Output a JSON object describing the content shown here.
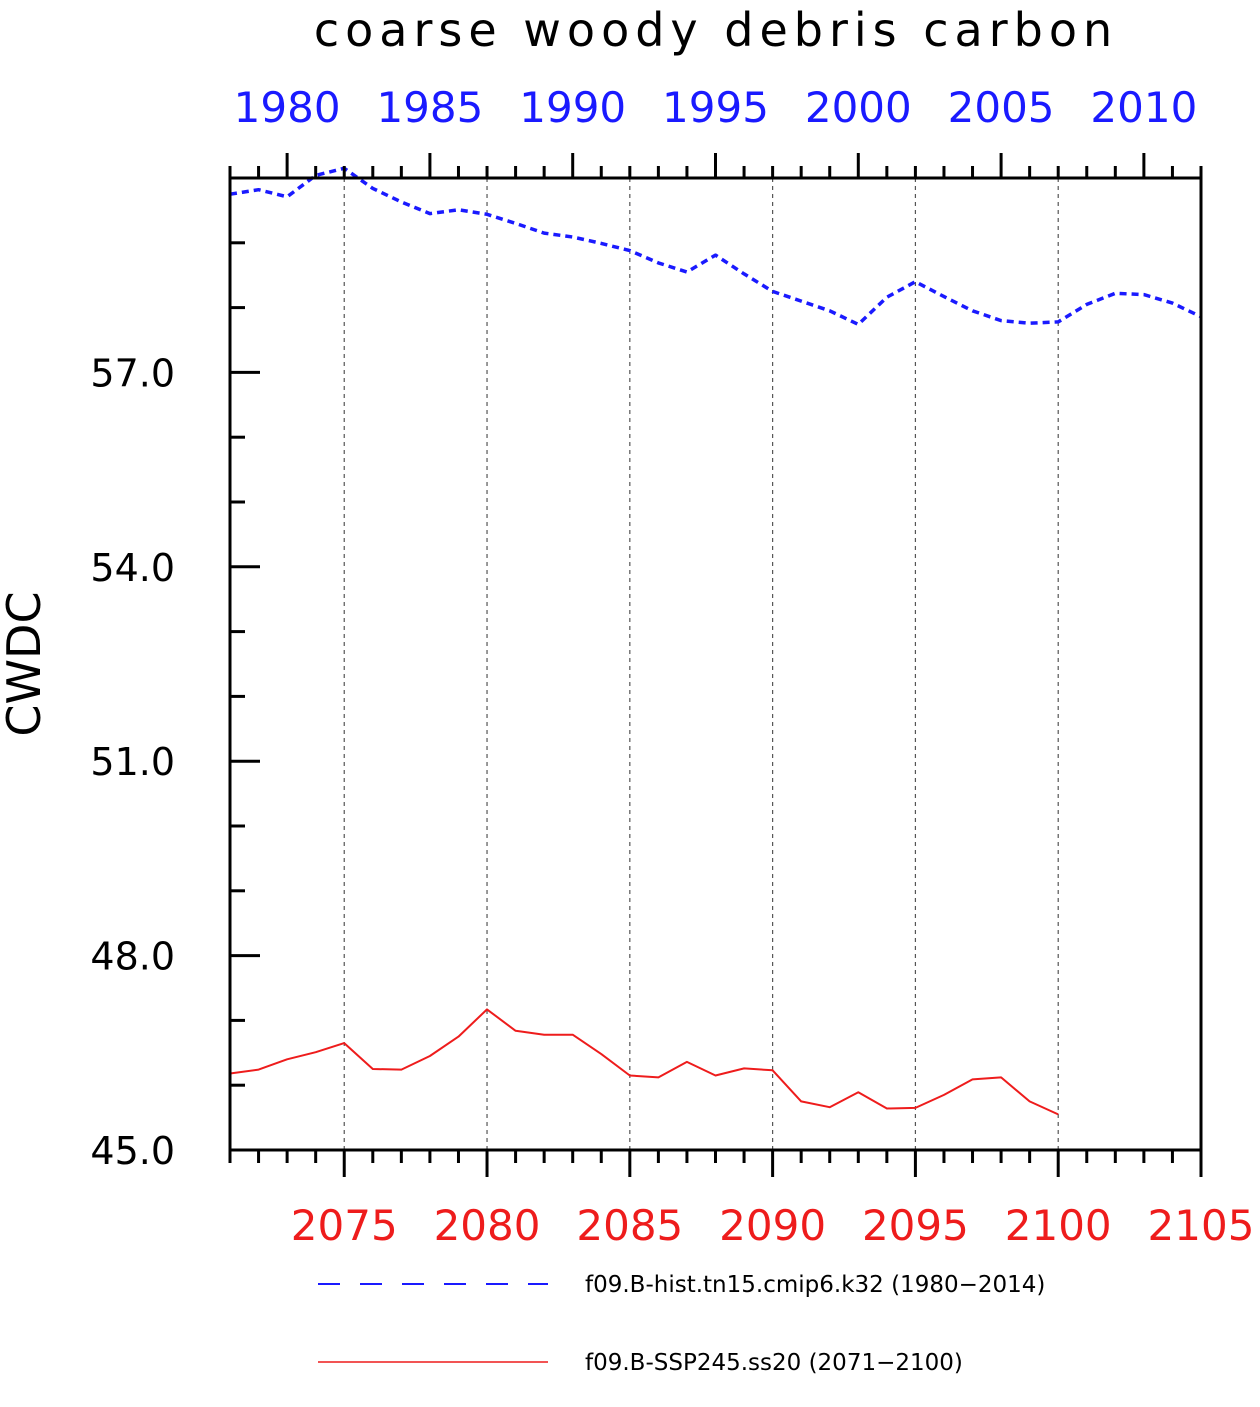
{
  "chart_data": {
    "type": "line",
    "title": "coarse woody debris carbon",
    "ylabel": "CWDC",
    "xlabel": "",
    "ylim": [
      45.0,
      60.0
    ],
    "y_ticks": [
      "45.0",
      "48.0",
      "51.0",
      "54.0",
      "57.0"
    ],
    "grid": "vertical dashed",
    "legend_position": "bottom",
    "top_axis": {
      "color": "#1a1aff",
      "range": [
        1978,
        2012
      ],
      "tick_labels": [
        "1980",
        "1985",
        "1990",
        "1995",
        "2000",
        "2005",
        "2010"
      ]
    },
    "bottom_axis": {
      "color": "#ee1c1c",
      "range": [
        2071,
        2105
      ],
      "tick_labels": [
        "2075",
        "2080",
        "2085",
        "2090",
        "2095",
        "2100",
        "2105"
      ]
    },
    "series": [
      {
        "name": "f09.B-hist.tn15.cmip6.k32 (1980−2014)",
        "color": "#1a1aff",
        "dash": "dashed",
        "axis": "top",
        "x": [
          1978,
          1979,
          1980,
          1981,
          1982,
          1983,
          1984,
          1985,
          1986,
          1987,
          1988,
          1989,
          1990,
          1991,
          1992,
          1993,
          1994,
          1995,
          1996,
          1997,
          1998,
          1999,
          2000,
          2001,
          2002,
          2003,
          2004,
          2005,
          2006,
          2007,
          2008,
          2009,
          2010,
          2011,
          2012
        ],
        "values": [
          59.75,
          59.82,
          59.71,
          60.04,
          60.15,
          59.84,
          59.63,
          59.45,
          59.51,
          59.44,
          59.3,
          59.15,
          59.09,
          58.99,
          58.88,
          58.69,
          58.55,
          58.81,
          58.52,
          58.25,
          58.1,
          57.95,
          57.74,
          58.16,
          58.4,
          58.17,
          57.95,
          57.8,
          57.76,
          57.78,
          58.05,
          58.22,
          58.2,
          58.07,
          57.86
        ]
      },
      {
        "name": "f09.B-SSP245.ss20 (2071−2100)",
        "color": "#ee1c1c",
        "dash": "solid",
        "axis": "bottom",
        "x": [
          2071,
          2072,
          2073,
          2074,
          2075,
          2076,
          2077,
          2078,
          2079,
          2080,
          2081,
          2082,
          2083,
          2084,
          2085,
          2086,
          2087,
          2088,
          2089,
          2090,
          2091,
          2092,
          2093,
          2094,
          2095,
          2096,
          2097,
          2098,
          2099,
          2100
        ],
        "values": [
          46.18,
          46.24,
          46.4,
          46.51,
          46.65,
          46.25,
          46.24,
          46.45,
          46.75,
          47.17,
          46.84,
          46.78,
          46.78,
          46.48,
          46.15,
          46.12,
          46.36,
          46.15,
          46.26,
          46.23,
          45.75,
          45.66,
          45.89,
          45.64,
          45.65,
          45.85,
          46.09,
          46.12,
          45.75,
          45.55
        ]
      }
    ]
  }
}
